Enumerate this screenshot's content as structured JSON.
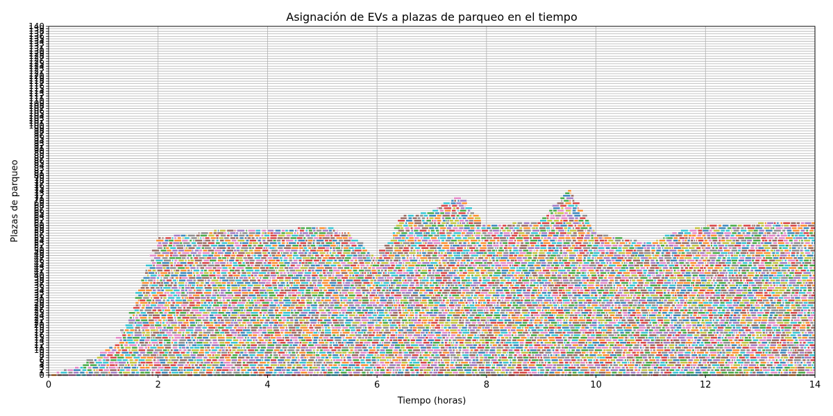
{
  "chart_data": {
    "type": "bar",
    "subtype": "gantt-like horizontal occupancy bars",
    "title": "Asignación de EVs a plazas de parqueo en el tiempo",
    "xlabel": "Tiempo (horas)",
    "ylabel": "Plazas de parqueo",
    "xlim": [
      0,
      14
    ],
    "ylim": [
      0,
      140
    ],
    "x_ticks": [
      0,
      2,
      4,
      6,
      8,
      10,
      12,
      14
    ],
    "y_tick_step": 1,
    "grid": true,
    "palette": [
      "#1f77b4",
      "#ff7f0e",
      "#2ca02c",
      "#d62728",
      "#9467bd",
      "#8c564b",
      "#e377c2",
      "#7f7f7f",
      "#bcbd22",
      "#17becf"
    ],
    "max_occupied_slot_profile": [
      {
        "t": 0.0,
        "slot": 0
      },
      {
        "t": 0.3,
        "slot": 2
      },
      {
        "t": 0.6,
        "slot": 4
      },
      {
        "t": 0.9,
        "slot": 8
      },
      {
        "t": 1.2,
        "slot": 12
      },
      {
        "t": 1.5,
        "slot": 25
      },
      {
        "t": 2.0,
        "slot": 55
      },
      {
        "t": 3.0,
        "slot": 58
      },
      {
        "t": 4.0,
        "slot": 58
      },
      {
        "t": 5.0,
        "slot": 60
      },
      {
        "t": 5.5,
        "slot": 57
      },
      {
        "t": 6.0,
        "slot": 47
      },
      {
        "t": 6.5,
        "slot": 64
      },
      {
        "t": 7.0,
        "slot": 66
      },
      {
        "t": 7.5,
        "slot": 72
      },
      {
        "t": 8.0,
        "slot": 60
      },
      {
        "t": 9.0,
        "slot": 62
      },
      {
        "t": 9.5,
        "slot": 75
      },
      {
        "t": 10.0,
        "slot": 57
      },
      {
        "t": 11.0,
        "slot": 53
      },
      {
        "t": 11.5,
        "slot": 58
      },
      {
        "t": 12.0,
        "slot": 60
      },
      {
        "t": 13.0,
        "slot": 61
      },
      {
        "t": 14.0,
        "slot": 61
      }
    ]
  }
}
